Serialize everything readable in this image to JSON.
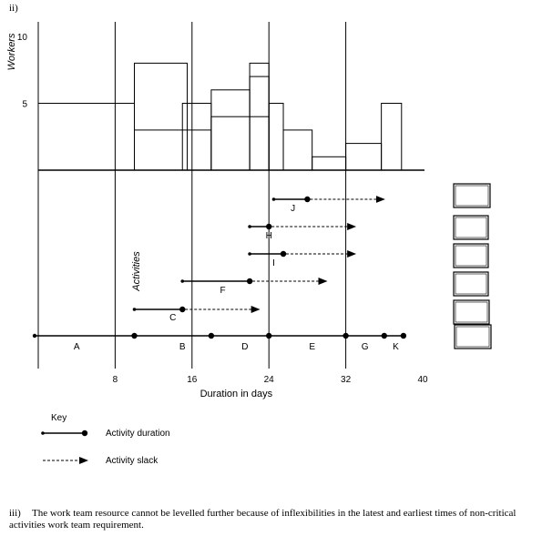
{
  "part_label": "ii)",
  "note": {
    "number": "iii)",
    "text": "The work team resource cannot be levelled further because of inflexibilities in the latest and earliest times of non-critical activities work team requirement."
  },
  "chart_data": {
    "type": "resource-histogram-and-activity-chart",
    "ylabel": "Workers",
    "activities_label": "Activities",
    "xlabel": "Duration in days",
    "x_ticks": [
      8,
      16,
      24,
      32,
      40
    ],
    "y_ticks": [
      5,
      10
    ],
    "x_range": [
      0,
      41
    ],
    "y_range": [
      0,
      10.5
    ],
    "vertical_gridlines_days": [
      8,
      16,
      24,
      32
    ],
    "histogram_blocks": [
      {
        "start": 0,
        "end": 10,
        "workers": 5
      },
      {
        "start": 10,
        "end": 15.5,
        "workers": 8
      },
      {
        "start": 10,
        "end": 18,
        "workers": 3
      },
      {
        "start": 15,
        "end": 18,
        "workers": 5
      },
      {
        "start": 18,
        "end": 22,
        "workers": 6
      },
      {
        "start": 18,
        "end": 24,
        "workers": 4
      },
      {
        "start": 22,
        "end": 24,
        "workers": 7
      },
      {
        "start": 22,
        "end": 24,
        "workers": 8
      },
      {
        "start": 24,
        "end": 25.5,
        "workers": 5
      },
      {
        "start": 25.5,
        "end": 28.5,
        "workers": 3
      },
      {
        "start": 28.5,
        "end": 32,
        "workers": 1
      },
      {
        "start": 32,
        "end": 35.7,
        "workers": 2
      },
      {
        "start": 35.7,
        "end": 37.8,
        "workers": 5
      }
    ],
    "critical_path": {
      "nodes": [
        0,
        10,
        18,
        24,
        32,
        36,
        38
      ],
      "labels": [
        {
          "text": "A",
          "x": 4
        },
        {
          "text": "B",
          "x": 15
        },
        {
          "text": "D",
          "x": 21.5
        },
        {
          "text": "E",
          "x": 28.5
        },
        {
          "text": "G",
          "x": 34
        },
        {
          "text": "K",
          "x": 37.2
        }
      ]
    },
    "activities": [
      {
        "name": "C",
        "start": 10,
        "end": 15,
        "slack_end": 23,
        "label_x": 14
      },
      {
        "name": "F",
        "start": 15,
        "end": 22,
        "slack_end": 30,
        "label_x": 19.2
      },
      {
        "name": "I",
        "start": 22,
        "end": 25.5,
        "slack_end": 33,
        "label_x": 24.5
      },
      {
        "name": "H",
        "start": 22,
        "end": 24,
        "slack_end": 33,
        "label_x": 24
      },
      {
        "name": "J",
        "start": 24.5,
        "end": 28,
        "slack_end": 36,
        "label_x": 26.5
      }
    ],
    "key": {
      "title": "Key",
      "items": [
        {
          "style": "solid",
          "label": "Activity duration"
        },
        {
          "style": "dashed",
          "label": "Activity slack"
        }
      ]
    },
    "side_boxes_count": 6
  }
}
